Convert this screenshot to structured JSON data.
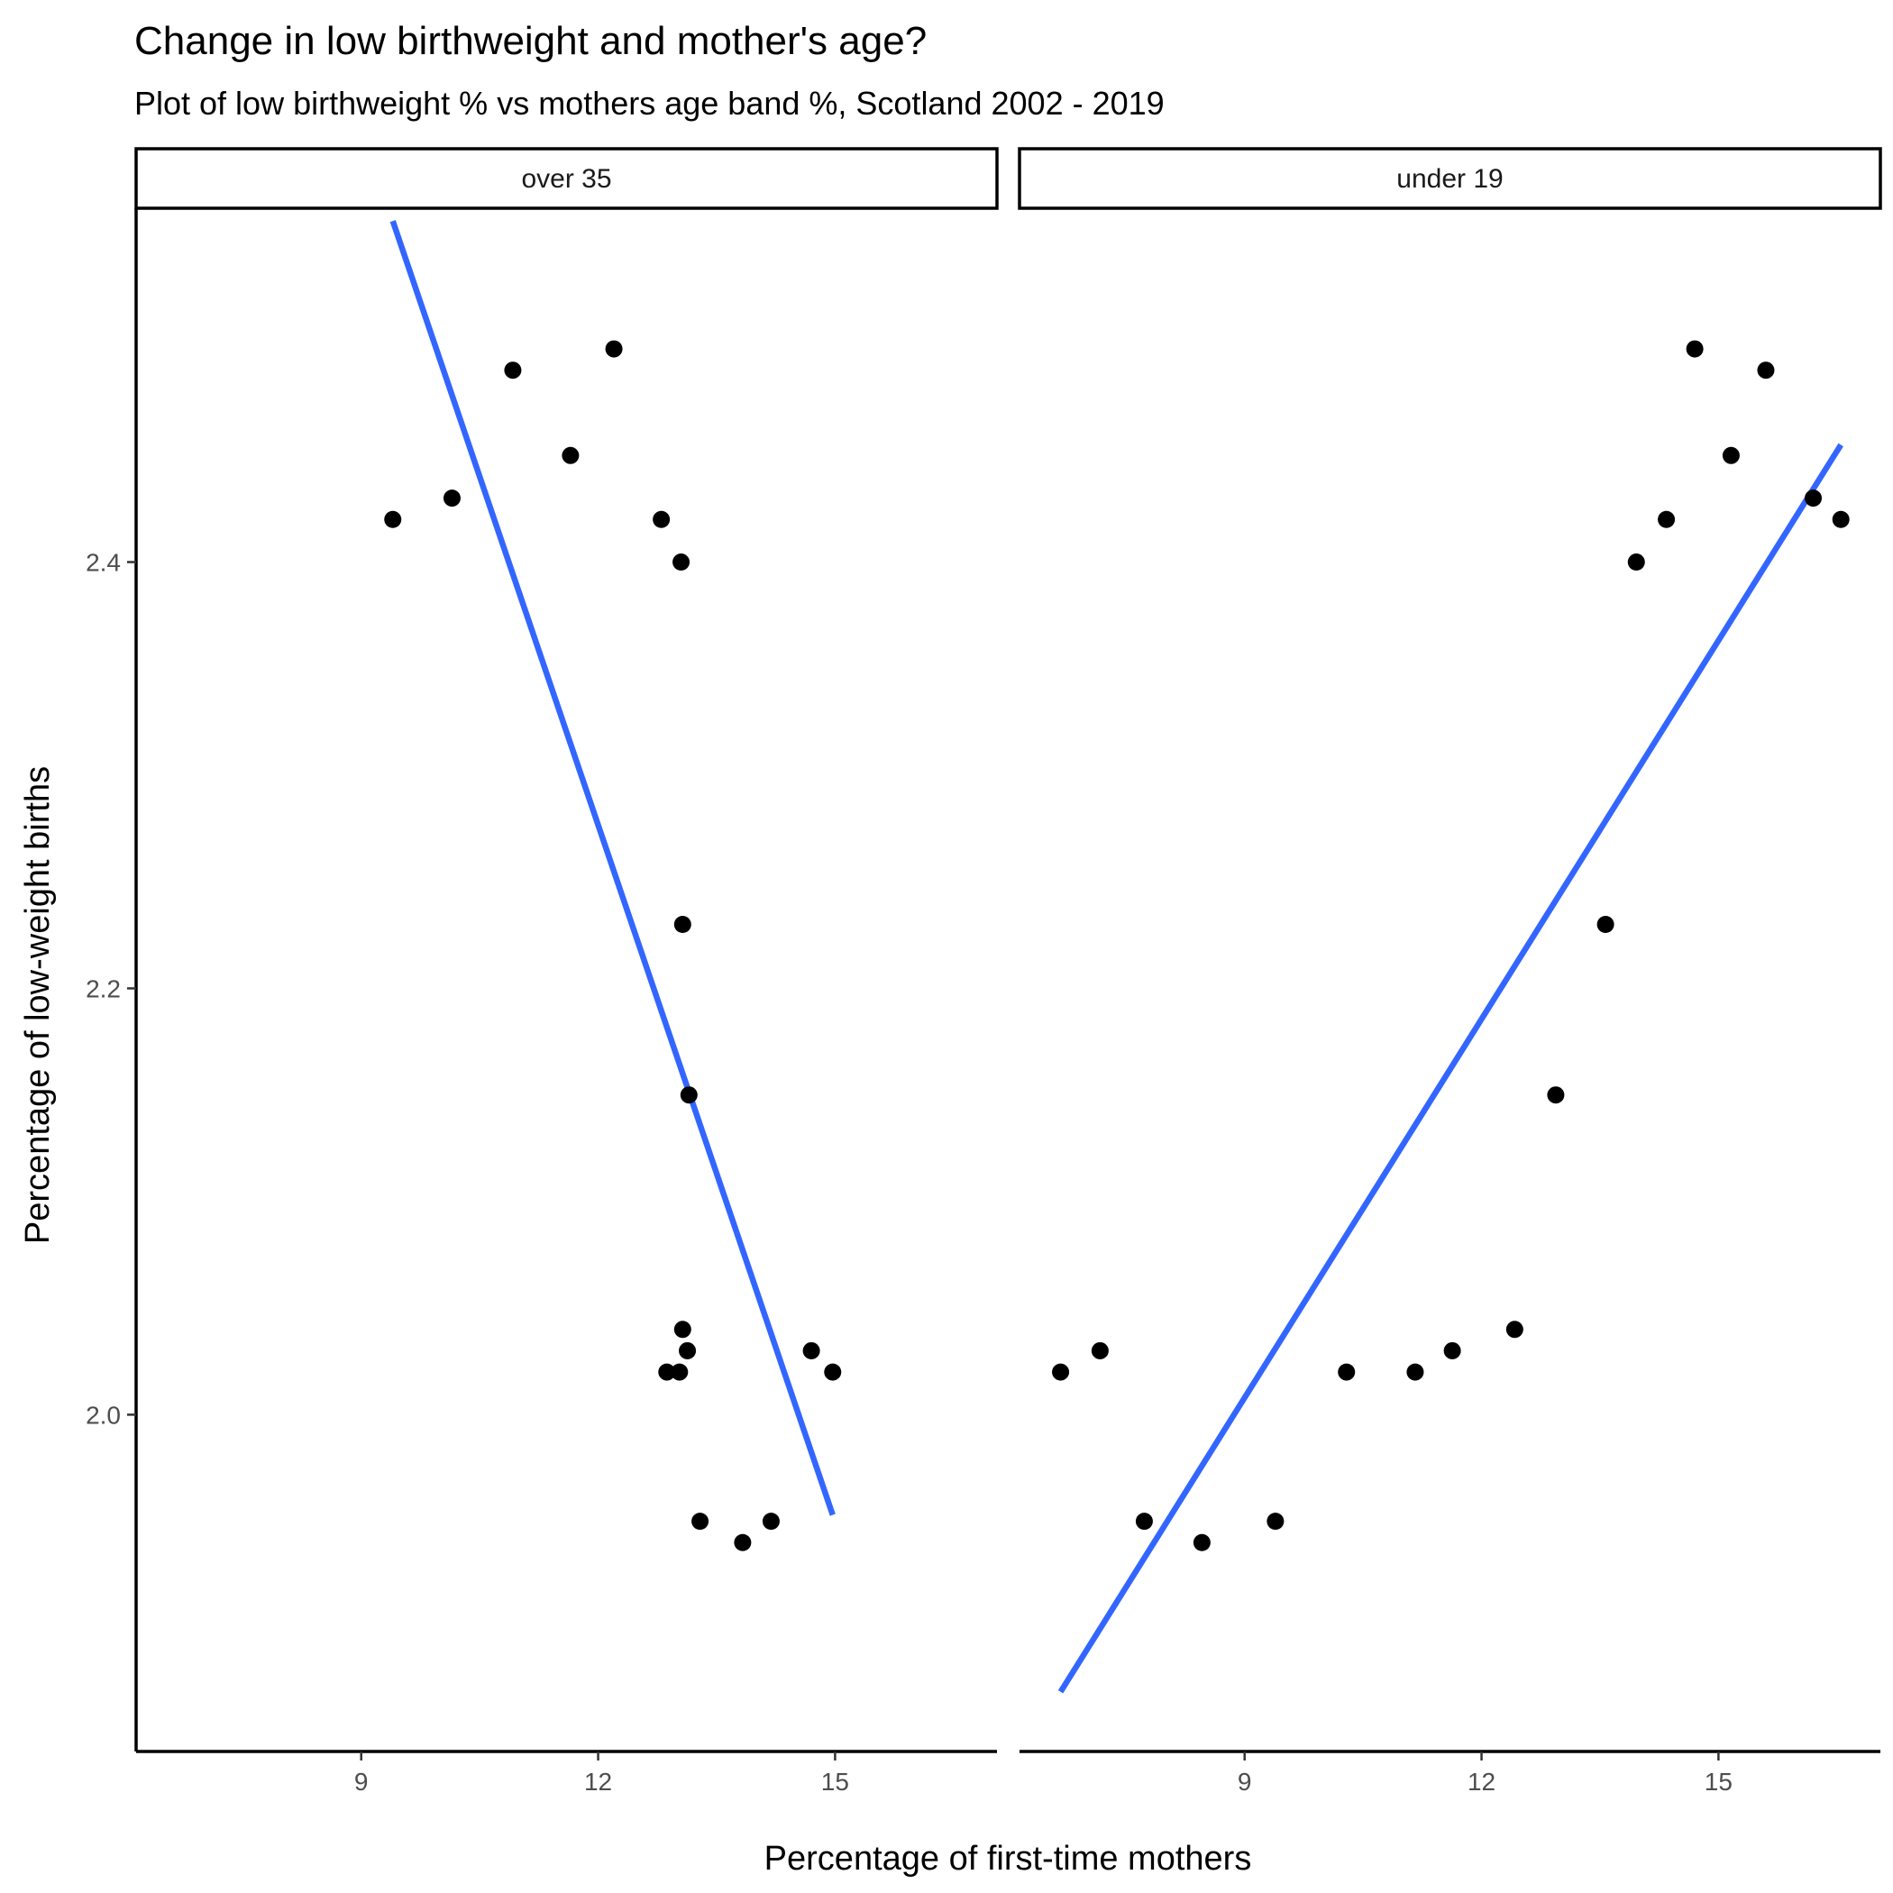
{
  "chart_data": {
    "type": "scatter",
    "title": "Change in low birthweight and mother's age?",
    "subtitle": "Plot of low birthweight % vs mothers age band %, Scotland 2002 - 2019",
    "xlabel": "Percentage of first-time mothers",
    "ylabel": "Percentage of low-weight births",
    "xlim": [
      6.15,
      17.05
    ],
    "ylim": [
      1.842,
      2.566
    ],
    "x_ticks": [
      9,
      12,
      15
    ],
    "y_ticks": [
      2.0,
      2.2,
      2.4
    ],
    "x_tick_labels": [
      "9",
      "12",
      "15"
    ],
    "y_tick_labels": [
      "2.0",
      "2.2",
      "2.4"
    ],
    "grid": false,
    "point_color": "#000000",
    "line_color": "#3366FF",
    "panels": [
      {
        "label": "over 35",
        "points": [
          {
            "x": 9.4,
            "y": 2.42
          },
          {
            "x": 10.15,
            "y": 2.43
          },
          {
            "x": 10.92,
            "y": 2.49
          },
          {
            "x": 11.65,
            "y": 2.45
          },
          {
            "x": 12.2,
            "y": 2.5
          },
          {
            "x": 12.8,
            "y": 2.42
          },
          {
            "x": 13.05,
            "y": 2.4
          },
          {
            "x": 13.07,
            "y": 2.23
          },
          {
            "x": 13.15,
            "y": 2.15
          },
          {
            "x": 13.07,
            "y": 2.04
          },
          {
            "x": 13.13,
            "y": 2.03
          },
          {
            "x": 12.87,
            "y": 2.02
          },
          {
            "x": 13.03,
            "y": 2.02
          },
          {
            "x": 13.29,
            "y": 1.95
          },
          {
            "x": 13.83,
            "y": 1.94
          },
          {
            "x": 14.19,
            "y": 1.95
          },
          {
            "x": 14.7,
            "y": 2.03
          },
          {
            "x": 14.97,
            "y": 2.02
          }
        ],
        "trend": {
          "x": [
            9.4,
            14.97
          ],
          "y": [
            2.56,
            1.953
          ]
        }
      },
      {
        "label": "under 19",
        "points": [
          {
            "x": 6.67,
            "y": 2.02
          },
          {
            "x": 7.17,
            "y": 2.03
          },
          {
            "x": 7.73,
            "y": 1.95
          },
          {
            "x": 8.46,
            "y": 1.94
          },
          {
            "x": 9.39,
            "y": 1.95
          },
          {
            "x": 10.29,
            "y": 2.02
          },
          {
            "x": 11.16,
            "y": 2.02
          },
          {
            "x": 11.63,
            "y": 2.03
          },
          {
            "x": 12.42,
            "y": 2.04
          },
          {
            "x": 12.94,
            "y": 2.15
          },
          {
            "x": 13.57,
            "y": 2.23
          },
          {
            "x": 13.96,
            "y": 2.4
          },
          {
            "x": 14.34,
            "y": 2.42
          },
          {
            "x": 14.7,
            "y": 2.5
          },
          {
            "x": 15.16,
            "y": 2.45
          },
          {
            "x": 15.6,
            "y": 2.49
          },
          {
            "x": 16.2,
            "y": 2.43
          },
          {
            "x": 16.55,
            "y": 2.42
          }
        ],
        "trend": {
          "x": [
            6.67,
            16.55
          ],
          "y": [
            1.87,
            2.455
          ]
        }
      }
    ]
  }
}
